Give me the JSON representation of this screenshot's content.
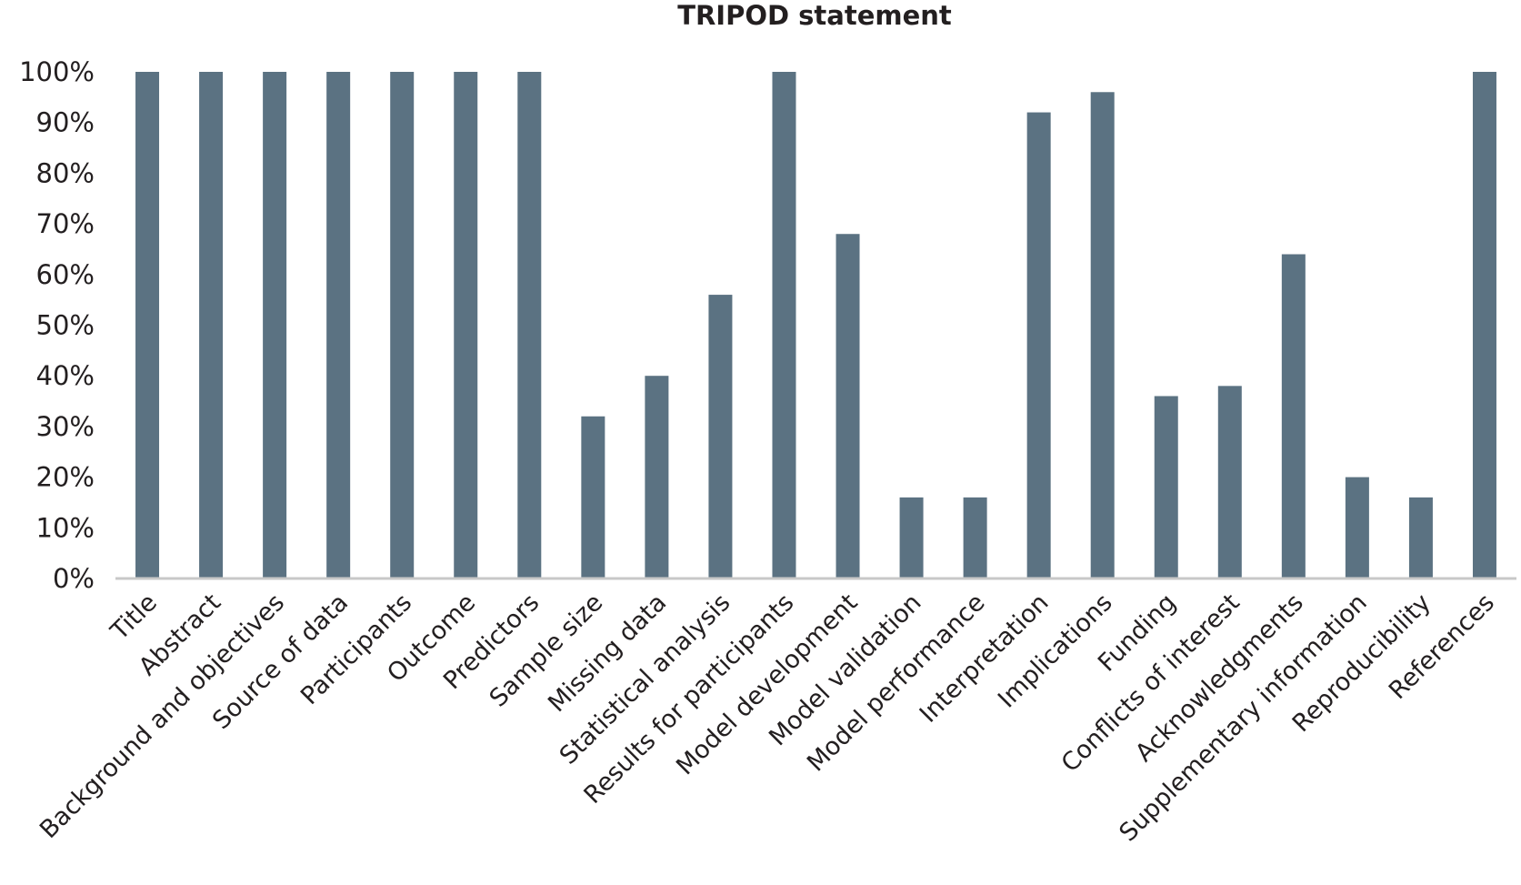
{
  "chart_data": {
    "type": "bar",
    "title": "TRIPOD statement",
    "xlabel": "",
    "ylabel": "",
    "ylim": [
      0,
      100
    ],
    "yticks": [
      "0%",
      "10%",
      "20%",
      "30%",
      "40%",
      "50%",
      "60%",
      "70%",
      "80%",
      "90%",
      "100%"
    ],
    "grid": false,
    "legend": "none",
    "bar_color": "#5b7282",
    "categories": [
      "Title",
      "Abstract",
      "Background and objectives",
      "Source of data",
      "Participants",
      "Outcome",
      "Predictors",
      "Sample size",
      "Missing data",
      "Statistical analysis",
      "Results for participants",
      "Model development",
      "Model validation",
      "Model performance",
      "Interpretation",
      "Implications",
      "Funding",
      "Conflicts of interest",
      "Acknowledgments",
      "Supplementary information",
      "Reproducibility",
      "References"
    ],
    "values": [
      100,
      100,
      100,
      100,
      100,
      100,
      100,
      32,
      40,
      56,
      100,
      68,
      16,
      16,
      92,
      96,
      36,
      38,
      64,
      20,
      16,
      100
    ]
  }
}
